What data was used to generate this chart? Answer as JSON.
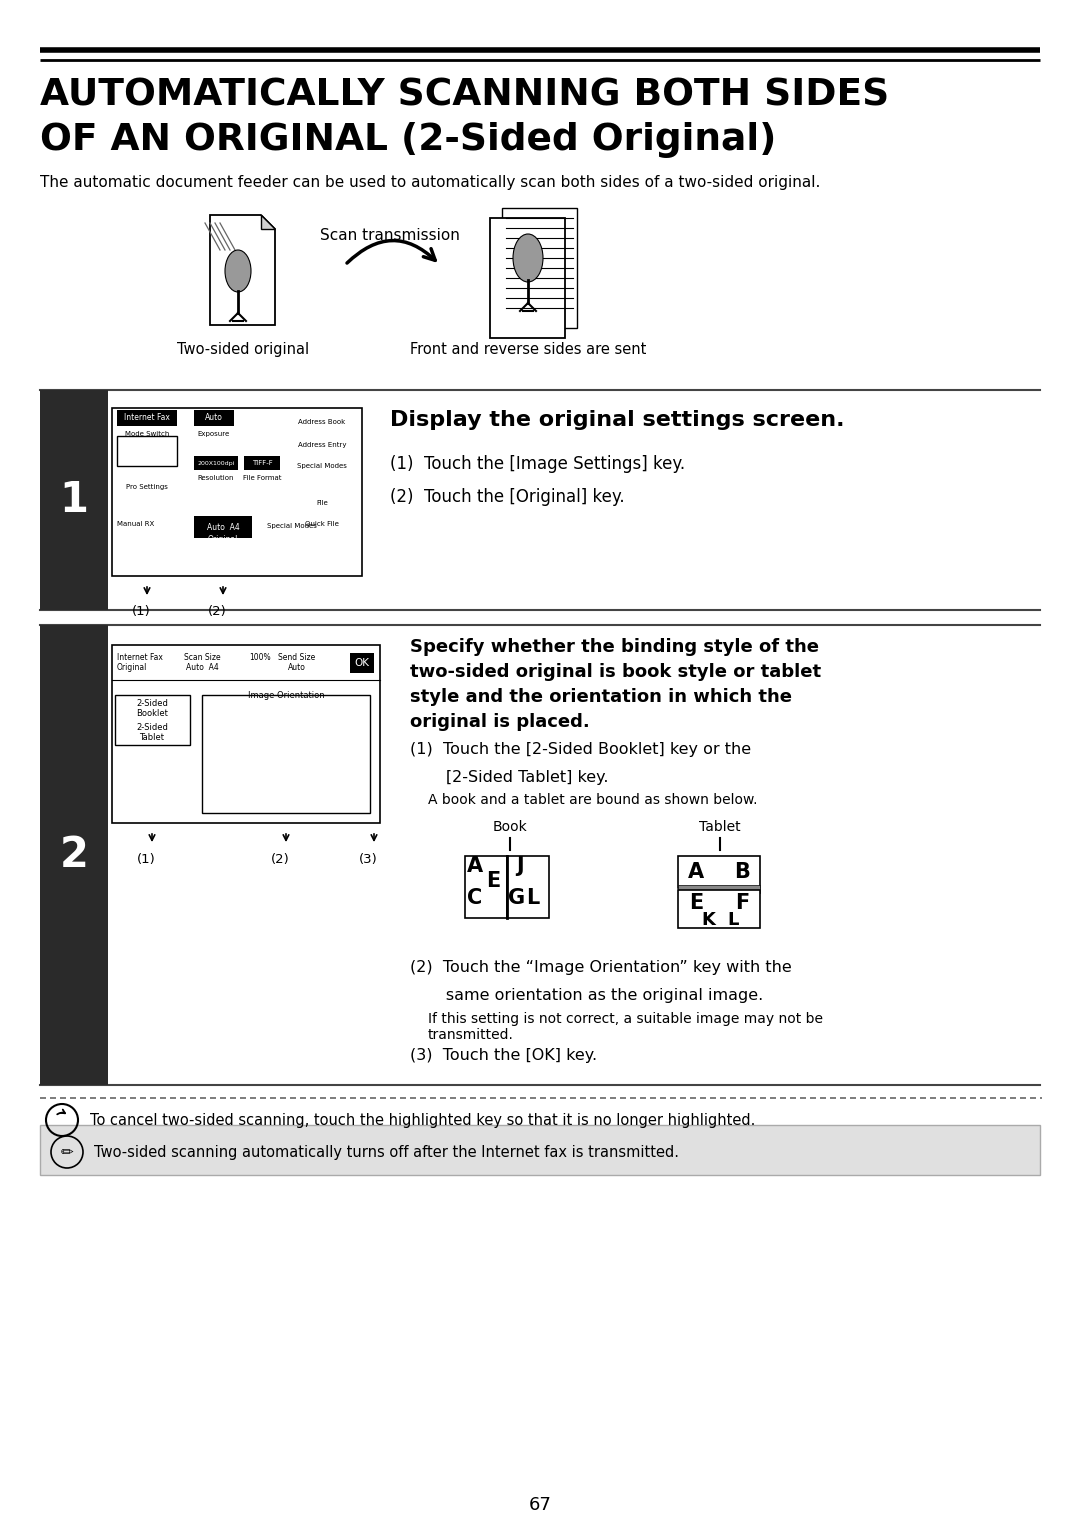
{
  "title_line1": "AUTOMATICALLY SCANNING BOTH SIDES",
  "title_line2": "OF AN ORIGINAL (2-Sided Original)",
  "subtitle": "The automatic document feeder can be used to automatically scan both sides of a two-sided original.",
  "scan_transmission_label": "Scan transmission",
  "two_sided_label": "Two-sided original",
  "front_reverse_label": "Front and reverse sides are sent",
  "step1_title": "Display the original settings screen.",
  "step1_1": "(1)  Touch the [Image Settings] key.",
  "step1_2": "(2)  Touch the [Original] key.",
  "step2_title": "Specify whether the binding style of the\ntwo-sided original is book style or tablet\nstyle and the orientation in which the\noriginal is placed.",
  "step2_1a": "(1)  Touch the [2-Sided Booklet] key or the",
  "step2_1b": "       [2-Sided Tablet] key.",
  "step2_1c": "A book and a tablet are bound as shown below.",
  "book_label": "Book",
  "tablet_label": "Tablet",
  "step2_2a": "(2)  Touch the “Image Orientation” key with the",
  "step2_2b": "       same orientation as the original image.",
  "step2_2c": "If this setting is not correct, a suitable image may not be\ntransmitted.",
  "step2_3": "(3)  Touch the [OK] key.",
  "cancel_note": "To cancel two-sided scanning, touch the highlighted key so that it is no longer highlighted.",
  "footer_note": "Two-sided scanning automatically turns off after the Internet fax is transmitted.",
  "page_number": "67",
  "bg_color": "#ffffff",
  "step_bg": "#2a2a2a",
  "panel_bg": "#e8e8e8"
}
